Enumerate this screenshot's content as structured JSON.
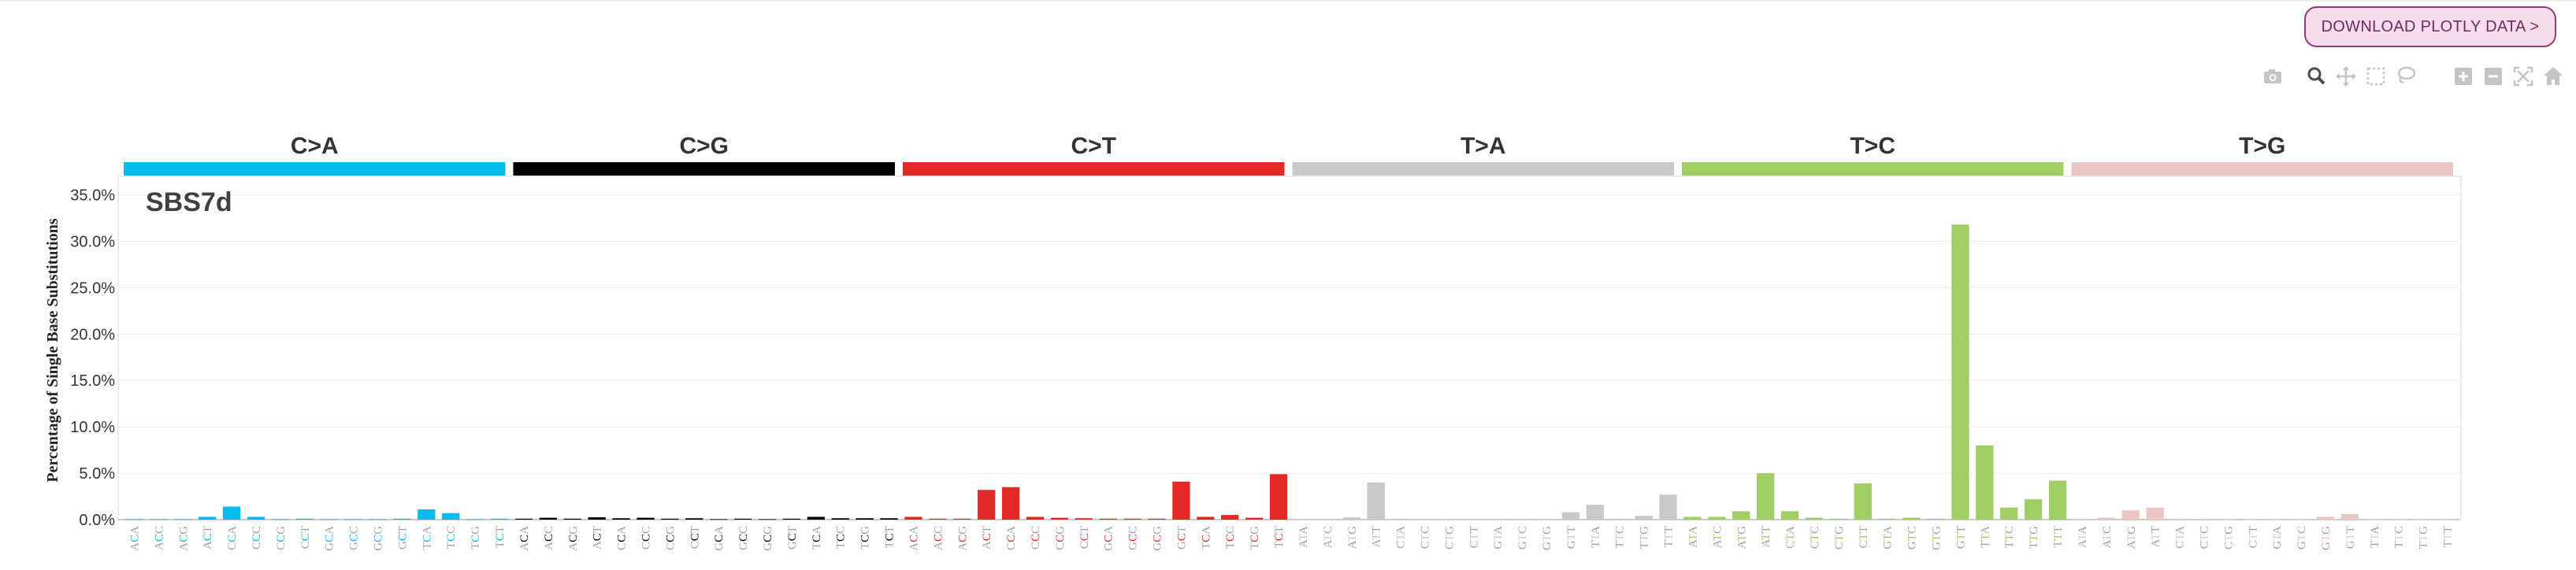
{
  "toolbar": {
    "download_label": "DOWNLOAD PLOTLY DATA >",
    "modebar": [
      {
        "name": "camera-icon",
        "active": false
      },
      {
        "name": "zoom-icon",
        "active": true
      },
      {
        "name": "pan-icon",
        "active": false
      },
      {
        "name": "box-select-icon",
        "active": false
      },
      {
        "name": "lasso-select-icon",
        "active": false
      },
      {
        "name": "zoom-in-icon",
        "active": false
      },
      {
        "name": "zoom-out-icon",
        "active": false
      },
      {
        "name": "autoscale-icon",
        "active": false
      },
      {
        "name": "reset-axes-icon",
        "active": false
      }
    ]
  },
  "chart_data": {
    "type": "bar",
    "title": "SBS7d",
    "xlabel": "",
    "ylabel": "Percentage of Single Base Substitutions",
    "ylim": [
      0,
      37
    ],
    "yticks": [
      "0.0%",
      "5.0%",
      "10.0%",
      "15.0%",
      "20.0%",
      "25.0%",
      "30.0%",
      "35.0%"
    ],
    "ytick_values": [
      0,
      5,
      10,
      15,
      20,
      25,
      30,
      35
    ],
    "grid": true,
    "groups": [
      {
        "label": "C>A",
        "color": "#03bcee"
      },
      {
        "label": "C>G",
        "color": "#010101"
      },
      {
        "label": "C>T",
        "color": "#e32926"
      },
      {
        "label": "T>A",
        "color": "#cac9c9"
      },
      {
        "label": "T>C",
        "color": "#a1ce63"
      },
      {
        "label": "T>G",
        "color": "#ebc6c4"
      }
    ],
    "categories": [
      "ACA",
      "ACC",
      "ACG",
      "ACT",
      "CCA",
      "CCC",
      "CCG",
      "CCT",
      "GCA",
      "GCC",
      "GCG",
      "GCT",
      "TCA",
      "TCC",
      "TCG",
      "TCT",
      "ACA",
      "ACC",
      "ACG",
      "ACT",
      "CCA",
      "CCC",
      "CCG",
      "CCT",
      "GCA",
      "GCC",
      "GCG",
      "GCT",
      "TCA",
      "TCC",
      "TCG",
      "TCT",
      "ACA",
      "ACC",
      "ACG",
      "ACT",
      "CCA",
      "CCC",
      "CCG",
      "CCT",
      "GCA",
      "GCC",
      "GCG",
      "GCT",
      "TCA",
      "TCC",
      "TCG",
      "TCT",
      "ATA",
      "ATC",
      "ATG",
      "ATT",
      "CTA",
      "CTC",
      "CTG",
      "CTT",
      "GTA",
      "GTC",
      "GTG",
      "GTT",
      "TTA",
      "TTC",
      "TTG",
      "TTT",
      "ATA",
      "ATC",
      "ATG",
      "ATT",
      "CTA",
      "CTC",
      "CTG",
      "CTT",
      "GTA",
      "GTC",
      "GTG",
      "GTT",
      "TTA",
      "TTC",
      "TTG",
      "TTT",
      "ATA",
      "ATC",
      "ATG",
      "ATT",
      "CTA",
      "CTC",
      "CTG",
      "CTT",
      "GTA",
      "GTC",
      "GTG",
      "GTT",
      "TTA",
      "TTC",
      "TTG",
      "TTT"
    ],
    "values": [
      0.05,
      0.05,
      0.05,
      0.3,
      1.4,
      0.3,
      0.05,
      0.1,
      0.05,
      0.05,
      0.05,
      0.1,
      1.1,
      0.7,
      0.05,
      0.1,
      0.1,
      0.2,
      0.1,
      0.25,
      0.15,
      0.2,
      0.1,
      0.15,
      0.05,
      0.1,
      0.05,
      0.1,
      0.3,
      0.15,
      0.15,
      0.15,
      0.3,
      0.1,
      0.1,
      3.2,
      3.5,
      0.3,
      0.2,
      0.15,
      0.1,
      0.1,
      0.1,
      4.1,
      0.3,
      0.5,
      0.2,
      4.9,
      0.05,
      0.05,
      0.25,
      4.0,
      0.1,
      0.05,
      0.05,
      0.05,
      0.05,
      0.05,
      0.05,
      0.8,
      1.6,
      0.1,
      0.4,
      2.7,
      0.3,
      0.3,
      0.9,
      5.0,
      0.9,
      0.2,
      0.1,
      3.9,
      0.1,
      0.2,
      0.1,
      31.8,
      8.0,
      1.3,
      2.2,
      4.2,
      0.1,
      0.2,
      1.0,
      1.3,
      0.1,
      0.1,
      0.05,
      0.05,
      0.05,
      0.05,
      0.3,
      0.6,
      0.05,
      0.05,
      0.05,
      0.05
    ]
  }
}
